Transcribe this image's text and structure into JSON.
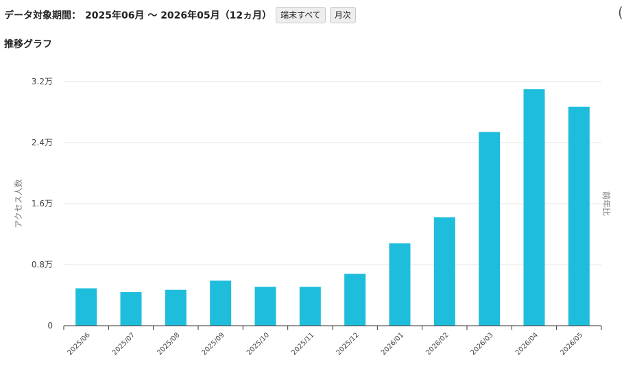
{
  "header": {
    "period_label": "データ対象期間：",
    "period_value": "2025年06月 〜 2026年05月（12ヵ月）",
    "device_button": "端末すべて",
    "interval_button": "月次",
    "right_paren": "("
  },
  "section_title": "推移グラフ",
  "chart_data": {
    "type": "bar",
    "categories": [
      "2025/06",
      "2025/07",
      "2025/08",
      "2025/09",
      "2025/10",
      "2025/11",
      "2025/12",
      "2026/01",
      "2026/02",
      "2026/03",
      "2026/04",
      "2026/05"
    ],
    "values": [
      4900,
      4400,
      4700,
      5900,
      5100,
      5100,
      6800,
      10800,
      14200,
      25400,
      31000,
      28700
    ],
    "ylabel": "アクセス人数",
    "y2label": "前年比",
    "ylim": [
      0,
      32000
    ],
    "yticks": [
      0,
      8000,
      16000,
      24000,
      32000
    ],
    "ytick_labels": [
      "0",
      "0.8万",
      "1.6万",
      "2.4万",
      "3.2万"
    ],
    "bar_color": "#1fbddc",
    "grid": true
  }
}
